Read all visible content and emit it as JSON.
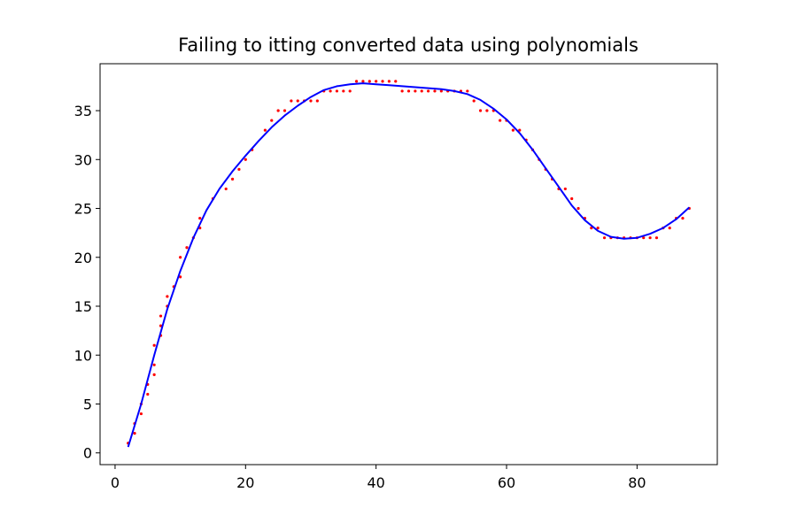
{
  "chart_data": {
    "type": "scatter",
    "title": "Failing to itting converted data using polynomials",
    "xlabel": "",
    "ylabel": "",
    "xlim": [
      -2.3,
      92.3
    ],
    "ylim": [
      -1.2,
      39.8
    ],
    "xticks": [
      0,
      20,
      40,
      60,
      80
    ],
    "yticks": [
      0,
      5,
      10,
      15,
      20,
      25,
      30,
      35
    ],
    "xtick_labels": [
      "0",
      "20",
      "40",
      "60",
      "80"
    ],
    "ytick_labels": [
      "0",
      "5",
      "10",
      "15",
      "20",
      "25",
      "30",
      "35"
    ],
    "grid": false,
    "legend": "none",
    "series": [
      {
        "kind": "points",
        "color": "#ff0000",
        "x": [
          2,
          3,
          3,
          4,
          4,
          5,
          5,
          6,
          6,
          6,
          7,
          7,
          7,
          8,
          8,
          9,
          10,
          10,
          11,
          12,
          13,
          13,
          15,
          17,
          18,
          19,
          20,
          21,
          23,
          24,
          25,
          26,
          27,
          28,
          29,
          30,
          31,
          32,
          33,
          34,
          35,
          36,
          37,
          38,
          39,
          40,
          41,
          42,
          43,
          44,
          45,
          46,
          47,
          48,
          49,
          50,
          51,
          52,
          53,
          54,
          55,
          56,
          57,
          58,
          59,
          60,
          61,
          62,
          63,
          64,
          65,
          66,
          67,
          68,
          69,
          70,
          71,
          72,
          73,
          74,
          75,
          76,
          77,
          78,
          79,
          80,
          81,
          82,
          83,
          84,
          85,
          86,
          87,
          88
        ],
        "y": [
          1,
          2,
          3,
          4,
          5,
          6,
          7,
          8,
          9,
          11,
          12,
          13,
          14,
          15,
          16,
          17,
          18,
          20,
          21,
          22,
          23,
          24,
          26,
          27,
          28,
          29,
          30,
          31,
          33,
          34,
          35,
          35,
          36,
          36,
          36,
          36,
          36,
          37,
          37,
          37,
          37,
          37,
          38,
          38,
          38,
          38,
          38,
          38,
          38,
          37,
          37,
          37,
          37,
          37,
          37,
          37,
          37,
          37,
          37,
          37,
          36,
          35,
          35,
          35,
          34,
          34,
          33,
          33,
          32,
          31,
          30,
          29,
          28,
          27,
          27,
          26,
          25,
          24,
          23,
          23,
          22,
          22,
          22,
          22,
          22,
          22,
          22,
          22,
          22,
          23,
          23,
          24,
          24,
          25
        ]
      },
      {
        "kind": "line",
        "color": "#0000ff",
        "x": [
          2,
          4,
          6,
          8,
          10,
          12,
          14,
          16,
          18,
          20,
          22,
          24,
          26,
          28,
          30,
          32,
          34,
          36,
          38,
          40,
          42,
          44,
          46,
          48,
          50,
          52,
          54,
          56,
          58,
          60,
          62,
          64,
          66,
          68,
          70,
          72,
          74,
          76,
          78,
          80,
          82,
          84,
          86,
          88
        ],
        "y": [
          0.6,
          5.0,
          10.0,
          14.7,
          18.6,
          22.0,
          24.8,
          27.0,
          28.8,
          30.4,
          31.9,
          33.3,
          34.5,
          35.5,
          36.4,
          37.1,
          37.5,
          37.7,
          37.8,
          37.7,
          37.6,
          37.5,
          37.4,
          37.3,
          37.2,
          37.0,
          36.7,
          36.1,
          35.2,
          34.1,
          32.7,
          31.0,
          29.1,
          27.2,
          25.3,
          23.8,
          22.7,
          22.1,
          21.9,
          22.0,
          22.4,
          23.0,
          23.9,
          25.1
        ]
      }
    ]
  }
}
